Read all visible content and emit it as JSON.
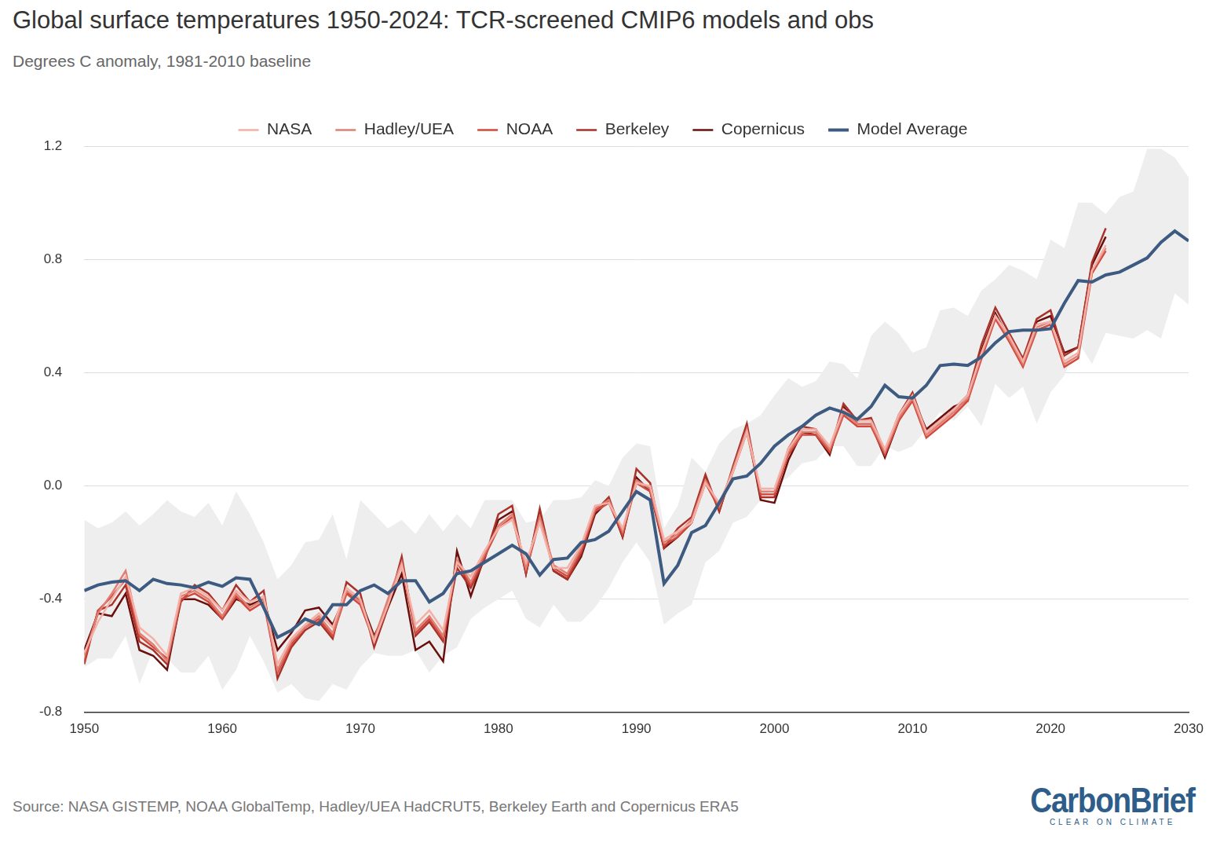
{
  "chart_data": {
    "type": "line",
    "title": "Global surface temperatures 1950-2024: TCR-screened CMIP6 models and obs",
    "subtitle": "Degrees C anomaly, 1981-2010 baseline",
    "source": "Source: NASA GISTEMP, NOAA GlobalTemp, Hadley/UEA HadCRUT5, Berkeley Earth and Copernicus ERA5",
    "logo": {
      "text": "CarbonBrief",
      "tagline": "CLEAR ON CLIMATE"
    },
    "x": [
      1950,
      1951,
      1952,
      1953,
      1954,
      1955,
      1956,
      1957,
      1958,
      1959,
      1960,
      1961,
      1962,
      1963,
      1964,
      1965,
      1966,
      1967,
      1968,
      1969,
      1970,
      1971,
      1972,
      1973,
      1974,
      1975,
      1976,
      1977,
      1978,
      1979,
      1980,
      1981,
      1982,
      1983,
      1984,
      1985,
      1986,
      1987,
      1988,
      1989,
      1990,
      1991,
      1992,
      1993,
      1994,
      1995,
      1996,
      1997,
      1998,
      1999,
      2000,
      2001,
      2002,
      2003,
      2004,
      2005,
      2006,
      2007,
      2008,
      2009,
      2010,
      2011,
      2012,
      2013,
      2014,
      2015,
      2016,
      2017,
      2018,
      2019,
      2020,
      2021,
      2022,
      2023,
      2024,
      2025,
      2026,
      2027,
      2028,
      2029,
      2030
    ],
    "xlim": [
      1950,
      2030
    ],
    "xticks": [
      1950,
      1960,
      1970,
      1980,
      1990,
      2000,
      2010,
      2020,
      2030
    ],
    "ylim": [
      -0.8,
      1.2
    ],
    "yticks": [
      -0.8,
      -0.4,
      {
        "value": 0,
        "label": "0.0"
      },
      0.4,
      0.8,
      1.2
    ],
    "grid": true,
    "legend": "top",
    "model_range": {
      "color": "#eeeeee",
      "lower": [
        -0.64,
        -0.61,
        -0.61,
        -0.53,
        -0.7,
        -0.58,
        -0.61,
        -0.66,
        -0.66,
        -0.6,
        -0.72,
        -0.65,
        -0.53,
        -0.62,
        -0.73,
        -0.7,
        -0.75,
        -0.76,
        -0.7,
        -0.72,
        -0.64,
        -0.59,
        -0.6,
        -0.6,
        -0.58,
        -0.66,
        -0.6,
        -0.57,
        -0.47,
        -0.43,
        -0.4,
        -0.37,
        -0.47,
        -0.5,
        -0.42,
        -0.48,
        -0.48,
        -0.43,
        -0.36,
        -0.27,
        -0.2,
        -0.27,
        -0.49,
        -0.45,
        -0.42,
        -0.27,
        -0.23,
        -0.13,
        -0.11,
        -0.05,
        0.0,
        0.03,
        0.08,
        0.09,
        0.14,
        0.14,
        0.07,
        0.07,
        0.14,
        0.12,
        0.14,
        0.2,
        0.26,
        0.23,
        0.28,
        0.21,
        0.36,
        0.31,
        0.35,
        0.22,
        0.33,
        0.39,
        0.51,
        0.43,
        0.54,
        0.53,
        0.52,
        0.55,
        0.52,
        0.68,
        0.64
      ],
      "upper": [
        -0.12,
        -0.15,
        -0.13,
        -0.09,
        -0.14,
        -0.1,
        -0.05,
        -0.09,
        -0.11,
        -0.06,
        -0.14,
        -0.02,
        -0.1,
        -0.2,
        -0.33,
        -0.28,
        -0.2,
        -0.19,
        -0.1,
        -0.26,
        -0.05,
        -0.1,
        -0.15,
        -0.12,
        -0.17,
        -0.1,
        -0.16,
        -0.1,
        -0.15,
        -0.05,
        -0.05,
        -0.05,
        -0.13,
        -0.12,
        -0.05,
        -0.05,
        -0.04,
        0.02,
        0.0,
        0.1,
        0.15,
        0.14,
        -0.15,
        -0.07,
        0.1,
        0.05,
        0.15,
        0.2,
        0.22,
        0.25,
        0.32,
        0.38,
        0.35,
        0.37,
        0.44,
        0.43,
        0.38,
        0.53,
        0.58,
        0.54,
        0.47,
        0.49,
        0.62,
        0.63,
        0.6,
        0.69,
        0.73,
        0.78,
        0.76,
        0.73,
        0.87,
        0.84,
        1.0,
        1.0,
        0.96,
        1.02,
        1.04,
        1.19,
        1.19,
        1.16,
        1.09
      ]
    },
    "series": [
      {
        "name": "NASA",
        "color": "#f4b0a6",
        "values": [
          -0.59,
          -0.48,
          -0.4,
          -0.32,
          -0.5,
          -0.54,
          -0.6,
          -0.38,
          -0.36,
          -0.39,
          -0.44,
          -0.37,
          -0.41,
          -0.39,
          -0.63,
          -0.54,
          -0.49,
          -0.45,
          -0.5,
          -0.36,
          -0.4,
          -0.55,
          -0.42,
          -0.28,
          -0.49,
          -0.44,
          -0.51,
          -0.27,
          -0.32,
          -0.23,
          -0.15,
          -0.12,
          -0.27,
          -0.13,
          -0.29,
          -0.29,
          -0.21,
          -0.07,
          -0.06,
          -0.15,
          0.01,
          0.0,
          -0.19,
          -0.16,
          -0.13,
          0.01,
          -0.06,
          0.05,
          0.19,
          -0.01,
          -0.01,
          0.13,
          0.2,
          0.2,
          0.14,
          0.27,
          0.23,
          0.23,
          0.13,
          0.25,
          0.32,
          0.19,
          0.23,
          0.27,
          0.32,
          0.47,
          0.6,
          0.53,
          0.44,
          0.57,
          0.58,
          0.44,
          0.47,
          0.76,
          0.85,
          null,
          null,
          null,
          null,
          null,
          null
        ]
      },
      {
        "name": "Hadley/UEA",
        "color": "#e07f73",
        "values": [
          -0.6,
          -0.45,
          -0.38,
          -0.3,
          -0.52,
          -0.56,
          -0.62,
          -0.39,
          -0.37,
          -0.4,
          -0.46,
          -0.38,
          -0.43,
          -0.4,
          -0.65,
          -0.55,
          -0.5,
          -0.46,
          -0.52,
          -0.37,
          -0.41,
          -0.54,
          -0.4,
          -0.27,
          -0.51,
          -0.46,
          -0.53,
          -0.26,
          -0.34,
          -0.24,
          -0.14,
          -0.1,
          -0.29,
          -0.11,
          -0.28,
          -0.31,
          -0.22,
          -0.08,
          -0.05,
          -0.16,
          0.02,
          -0.01,
          -0.2,
          -0.17,
          -0.12,
          0.02,
          -0.07,
          0.06,
          0.2,
          -0.02,
          -0.02,
          0.12,
          0.19,
          0.19,
          0.13,
          0.26,
          0.22,
          0.22,
          0.12,
          0.24,
          0.31,
          0.18,
          0.22,
          0.26,
          0.31,
          0.46,
          0.6,
          0.52,
          0.43,
          0.56,
          0.58,
          0.43,
          0.46,
          0.76,
          0.84,
          null,
          null,
          null,
          null,
          null,
          null
        ]
      },
      {
        "name": "NOAA",
        "color": "#d14a3d",
        "values": [
          -0.62,
          -0.44,
          -0.39,
          -0.33,
          -0.53,
          -0.57,
          -0.61,
          -0.4,
          -0.38,
          -0.41,
          -0.47,
          -0.39,
          -0.44,
          -0.41,
          -0.66,
          -0.56,
          -0.5,
          -0.47,
          -0.53,
          -0.38,
          -0.42,
          -0.55,
          -0.41,
          -0.28,
          -0.52,
          -0.47,
          -0.54,
          -0.27,
          -0.35,
          -0.25,
          -0.15,
          -0.11,
          -0.3,
          -0.12,
          -0.29,
          -0.32,
          -0.23,
          -0.09,
          -0.06,
          -0.17,
          0.01,
          -0.02,
          -0.21,
          -0.18,
          -0.13,
          0.01,
          -0.08,
          0.05,
          0.19,
          -0.03,
          -0.03,
          0.11,
          0.18,
          0.18,
          0.12,
          0.25,
          0.21,
          0.21,
          0.11,
          0.23,
          0.3,
          0.17,
          0.21,
          0.25,
          0.3,
          0.45,
          0.59,
          0.51,
          0.42,
          0.55,
          0.57,
          0.42,
          0.45,
          0.75,
          0.83,
          null,
          null,
          null,
          null,
          null,
          null
        ]
      },
      {
        "name": "Berkeley",
        "color": "#a8322a",
        "values": [
          -0.63,
          -0.44,
          -0.42,
          -0.35,
          -0.55,
          -0.58,
          -0.63,
          -0.41,
          -0.35,
          -0.38,
          -0.44,
          -0.35,
          -0.41,
          -0.37,
          -0.68,
          -0.57,
          -0.51,
          -0.48,
          -0.54,
          -0.34,
          -0.38,
          -0.57,
          -0.43,
          -0.25,
          -0.53,
          -0.48,
          -0.55,
          -0.29,
          -0.36,
          -0.26,
          -0.1,
          -0.07,
          -0.31,
          -0.08,
          -0.3,
          -0.33,
          -0.24,
          -0.09,
          -0.04,
          -0.18,
          0.06,
          0.01,
          -0.22,
          -0.15,
          -0.11,
          0.04,
          -0.09,
          0.07,
          0.22,
          -0.04,
          -0.04,
          0.13,
          0.21,
          0.2,
          0.12,
          0.29,
          0.23,
          0.24,
          0.12,
          0.25,
          0.33,
          0.19,
          0.23,
          0.27,
          0.32,
          0.5,
          0.63,
          0.54,
          0.45,
          0.59,
          0.62,
          0.46,
          0.49,
          0.79,
          0.91,
          null,
          null,
          null,
          null,
          null,
          null
        ]
      },
      {
        "name": "Copernicus",
        "color": "#6b0f0c",
        "values": [
          -0.58,
          -0.45,
          -0.46,
          -0.38,
          -0.58,
          -0.6,
          -0.65,
          -0.4,
          -0.4,
          -0.42,
          -0.47,
          -0.4,
          -0.42,
          -0.4,
          -0.58,
          -0.52,
          -0.44,
          -0.43,
          -0.49,
          -0.38,
          -0.4,
          -0.53,
          -0.43,
          -0.31,
          -0.58,
          -0.55,
          -0.62,
          -0.23,
          -0.39,
          -0.25,
          -0.12,
          -0.09,
          -0.31,
          -0.09,
          -0.3,
          -0.33,
          -0.25,
          -0.1,
          -0.05,
          -0.18,
          0.03,
          -0.02,
          -0.22,
          -0.18,
          -0.13,
          0.03,
          -0.09,
          0.06,
          0.21,
          -0.05,
          -0.06,
          0.09,
          0.19,
          0.18,
          0.11,
          0.28,
          0.22,
          0.22,
          0.1,
          0.23,
          0.31,
          0.2,
          0.24,
          0.28,
          0.3,
          0.48,
          0.61,
          0.52,
          0.44,
          0.58,
          0.6,
          0.47,
          0.49,
          0.78,
          0.88,
          null,
          null,
          null,
          null,
          null,
          null
        ]
      },
      {
        "name": "Model Average",
        "color": "#3d5a80",
        "values": [
          -0.37,
          -0.35,
          -0.34,
          -0.335,
          -0.37,
          -0.33,
          -0.345,
          -0.35,
          -0.36,
          -0.34,
          -0.355,
          -0.325,
          -0.33,
          -0.43,
          -0.535,
          -0.51,
          -0.47,
          -0.49,
          -0.42,
          -0.42,
          -0.37,
          -0.35,
          -0.38,
          -0.335,
          -0.335,
          -0.41,
          -0.38,
          -0.31,
          -0.3,
          -0.27,
          -0.24,
          -0.21,
          -0.24,
          -0.315,
          -0.26,
          -0.255,
          -0.2,
          -0.19,
          -0.16,
          -0.09,
          -0.02,
          -0.05,
          -0.345,
          -0.28,
          -0.165,
          -0.14,
          -0.06,
          0.025,
          0.035,
          0.08,
          0.14,
          0.18,
          0.21,
          0.25,
          0.275,
          0.26,
          0.235,
          0.28,
          0.355,
          0.315,
          0.31,
          0.355,
          0.425,
          0.43,
          0.425,
          0.455,
          0.505,
          0.545,
          0.55,
          0.55,
          0.555,
          0.645,
          0.725,
          0.72,
          0.745,
          0.755,
          0.78,
          0.805,
          0.86,
          0.9,
          0.865
        ]
      }
    ]
  }
}
